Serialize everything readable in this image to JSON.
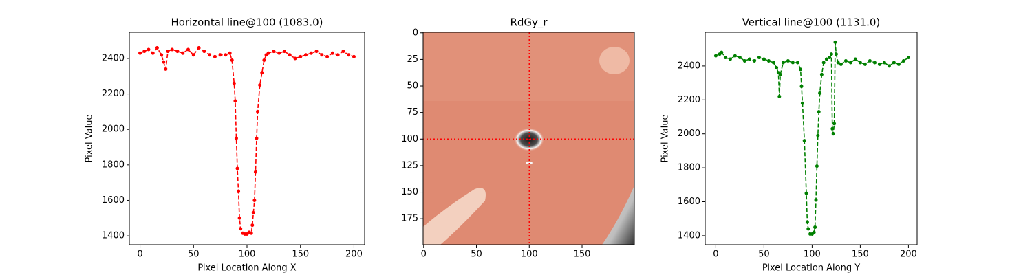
{
  "chart_data": [
    {
      "type": "line",
      "title": "Horizontal line@100 (1083.0)",
      "xlabel": "Pixel Location Along X",
      "ylabel": "Pixel Value",
      "color": "#ff0000",
      "linestyle": "dashed",
      "x": [
        0,
        4,
        8,
        12,
        16,
        20,
        22,
        24,
        26,
        30,
        35,
        40,
        45,
        50,
        55,
        60,
        65,
        70,
        75,
        80,
        84,
        86,
        88,
        89,
        90,
        91,
        92,
        93,
        94,
        96,
        98,
        100,
        102,
        104,
        105,
        106,
        107,
        108,
        109,
        110,
        112,
        114,
        116,
        118,
        120,
        125,
        130,
        135,
        140,
        145,
        150,
        155,
        160,
        165,
        170,
        175,
        180,
        185,
        190,
        195,
        200
      ],
      "values": [
        2430,
        2440,
        2450,
        2430,
        2460,
        2420,
        2380,
        2340,
        2440,
        2450,
        2440,
        2430,
        2450,
        2420,
        2460,
        2440,
        2420,
        2410,
        2420,
        2420,
        2430,
        2390,
        2260,
        2160,
        1950,
        1780,
        1650,
        1500,
        1440,
        1415,
        1410,
        1410,
        1420,
        1415,
        1460,
        1530,
        1600,
        1760,
        1950,
        2100,
        2250,
        2320,
        2390,
        2420,
        2430,
        2440,
        2430,
        2440,
        2420,
        2400,
        2410,
        2420,
        2430,
        2440,
        2420,
        2410,
        2430,
        2420,
        2440,
        2420,
        2410
      ],
      "xlim": [
        -10,
        210
      ],
      "ylim": [
        1350,
        2547
      ],
      "xticks": [
        0,
        50,
        100,
        150,
        200
      ],
      "yticks": [
        1400,
        1600,
        1800,
        2000,
        2200,
        2400
      ]
    },
    {
      "type": "image",
      "title": "RdGy_r",
      "xlim": [
        -0.5,
        199.5
      ],
      "ylim": [
        199.5,
        -0.5
      ],
      "xticks": [
        0,
        50,
        100,
        150
      ],
      "yticks": [
        0,
        25,
        50,
        75,
        100,
        125,
        150,
        175
      ],
      "crosshair": {
        "x": 100,
        "y": 100,
        "color": "#ff0000"
      }
    },
    {
      "type": "line",
      "title": "Vertical line@100 (1131.0)",
      "xlabel": "Pixel Location Along Y",
      "ylabel": "Pixel Value",
      "color": "#008000",
      "linestyle": "dashed",
      "x": [
        0,
        4,
        6,
        10,
        15,
        20,
        25,
        30,
        35,
        40,
        45,
        50,
        55,
        60,
        63,
        65,
        66,
        67,
        70,
        75,
        80,
        85,
        88,
        89,
        90,
        92,
        94,
        95,
        96,
        98,
        100,
        102,
        103,
        104,
        105,
        106,
        107,
        108,
        110,
        112,
        115,
        118,
        120,
        121,
        122,
        123,
        124,
        125,
        127,
        130,
        135,
        140,
        145,
        150,
        155,
        160,
        165,
        170,
        175,
        180,
        185,
        190,
        195,
        200
      ],
      "values": [
        2460,
        2470,
        2480,
        2450,
        2440,
        2460,
        2450,
        2430,
        2440,
        2430,
        2450,
        2440,
        2430,
        2420,
        2390,
        2360,
        2220,
        2350,
        2420,
        2430,
        2420,
        2420,
        2380,
        2280,
        2180,
        1960,
        1650,
        1480,
        1440,
        1410,
        1410,
        1420,
        1450,
        1610,
        1810,
        1990,
        2130,
        2240,
        2350,
        2420,
        2440,
        2450,
        2470,
        2030,
        2000,
        2060,
        2540,
        2470,
        2420,
        2410,
        2430,
        2420,
        2440,
        2420,
        2410,
        2430,
        2420,
        2410,
        2420,
        2400,
        2420,
        2410,
        2430,
        2450
      ],
      "xlim": [
        -11,
        209
      ],
      "ylim": [
        1347,
        2598
      ],
      "xticks": [
        0,
        50,
        100,
        150,
        200
      ],
      "yticks": [
        1400,
        1600,
        1800,
        2000,
        2200,
        2400
      ]
    }
  ]
}
